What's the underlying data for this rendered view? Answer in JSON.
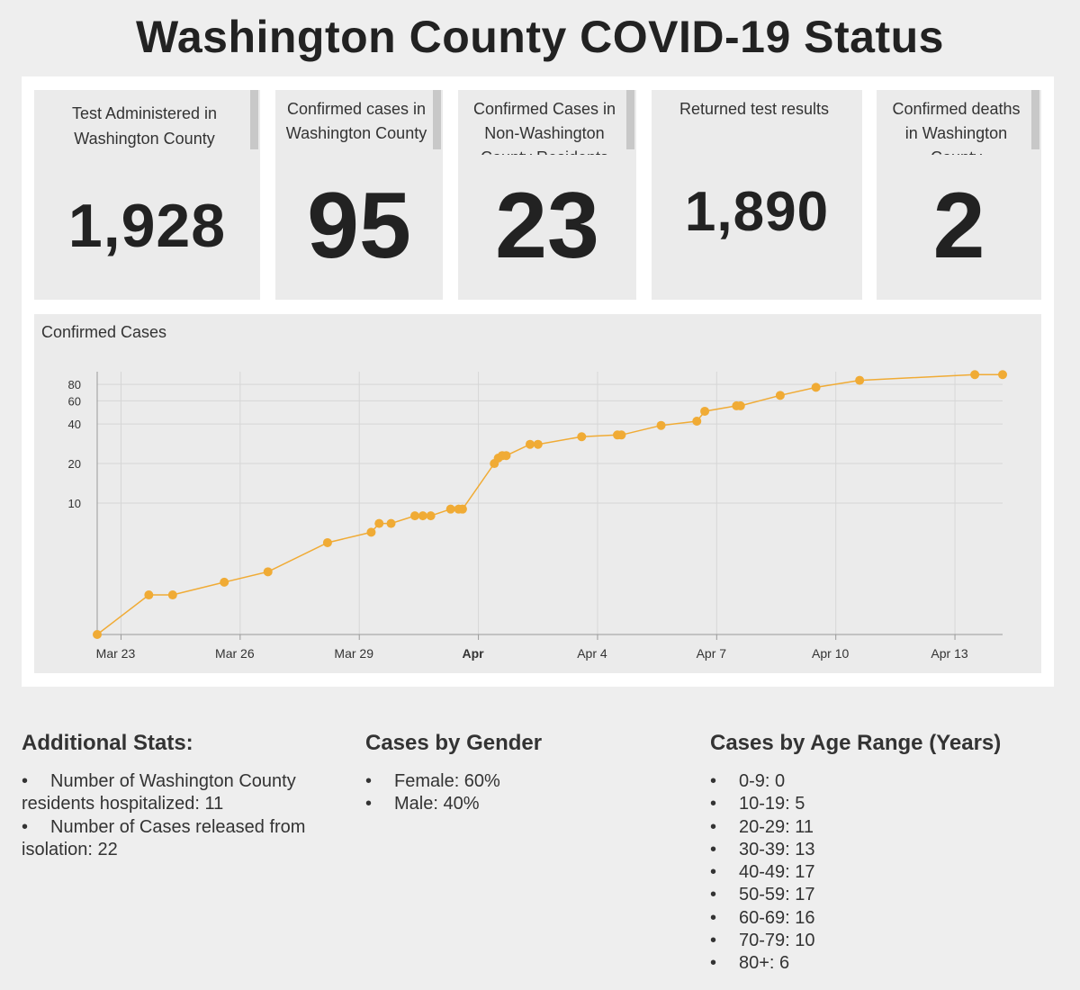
{
  "title": "Washington County COVID-19 Status",
  "cards": [
    {
      "label": "Test Administered in Washington County",
      "value": "1,928"
    },
    {
      "label": "Confirmed cases in Washington County",
      "value": "95"
    },
    {
      "label": "Confirmed Cases in Non-Washington County Residents",
      "value": "23"
    },
    {
      "label": "Returned test results",
      "value": "1,890"
    },
    {
      "label": "Confirmed deaths in Washington County",
      "value": "2"
    }
  ],
  "chart_data": {
    "type": "line",
    "title": "Confirmed Cases",
    "yscale": "log",
    "yticks": [
      10,
      20,
      40,
      60,
      80
    ],
    "xticks": [
      {
        "day": 0,
        "label": "Mar 23",
        "bold": false
      },
      {
        "day": 3,
        "label": "Mar 26",
        "bold": false
      },
      {
        "day": 6,
        "label": "Mar 29",
        "bold": false
      },
      {
        "day": 9,
        "label": "Apr",
        "bold": true
      },
      {
        "day": 12,
        "label": "Apr 4",
        "bold": false
      },
      {
        "day": 15,
        "label": "Apr 7",
        "bold": false
      },
      {
        "day": 18,
        "label": "Apr 10",
        "bold": false
      },
      {
        "day": 21,
        "label": "Apr 13",
        "bold": false
      }
    ],
    "xrange_days": [
      -0.6,
      22.2
    ],
    "ylim": [
      1,
      100
    ],
    "color": "#f0ab35",
    "x_days": [
      -0.6,
      0.7,
      1.3,
      2.6,
      3.7,
      5.2,
      6.3,
      6.5,
      6.8,
      7.4,
      7.6,
      7.8,
      8.3,
      8.5,
      8.6,
      9.4,
      9.5,
      9.6,
      9.7,
      10.3,
      10.5,
      11.6,
      12.5,
      12.6,
      13.6,
      14.5,
      14.7,
      15.5,
      15.6,
      16.6,
      17.5,
      18.6,
      21.5,
      22.2
    ],
    "y": [
      1,
      2,
      2,
      2.5,
      3,
      5,
      6,
      7,
      7,
      8,
      8,
      8,
      9,
      9,
      9,
      20,
      22,
      23,
      23,
      28,
      28,
      32,
      33,
      33,
      39,
      42,
      50,
      55,
      55,
      66,
      76,
      86,
      95,
      95
    ]
  },
  "additional": {
    "heading": "Additional Stats:",
    "items": [
      {
        "line1": "Number of Washington County",
        "line2": "residents hospitalized: 11"
      },
      {
        "line1": "Number of Cases released from",
        "line2": "isolation: 22"
      }
    ]
  },
  "gender": {
    "heading": "Cases by Gender",
    "items": [
      "Female: 60%",
      "Male: 40%"
    ]
  },
  "age": {
    "heading": "Cases by Age Range (Years)",
    "items": [
      "0-9: 0",
      "10-19: 5",
      "20-29: 11",
      "30-39: 13",
      "40-49: 17",
      "50-59: 17",
      "60-69: 16",
      "70-79: 10",
      "80+: 6"
    ]
  },
  "bullet": "•"
}
